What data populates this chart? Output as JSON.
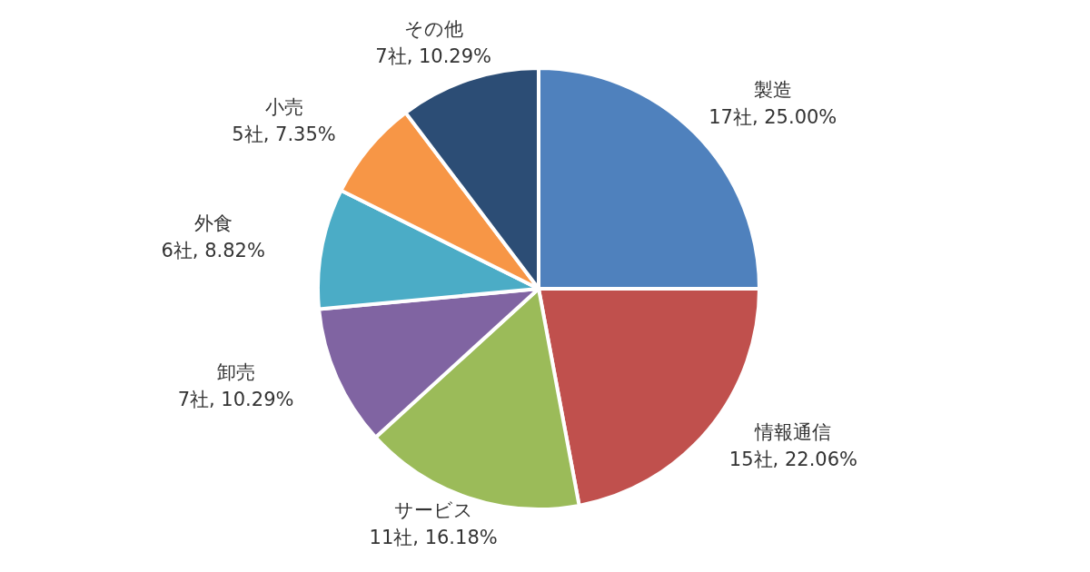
{
  "chart_data": {
    "type": "pie",
    "categories": [
      "製造",
      "情報通信",
      "サービス",
      "卸売",
      "外食",
      "小売",
      "その他"
    ],
    "values": [
      17,
      15,
      11,
      7,
      6,
      5,
      7
    ],
    "value_labels": [
      "17社, 25.00%",
      "15社, 22.06%",
      "11社, 16.18%",
      "7社, 10.29%",
      "6社, 8.82%",
      "5社, 7.35%",
      "7社, 10.29%"
    ],
    "colors": [
      "#4f81bd",
      "#c0504d",
      "#9bbb59",
      "#8064a2",
      "#4bacc6",
      "#f79646",
      "#2c4d75"
    ]
  }
}
